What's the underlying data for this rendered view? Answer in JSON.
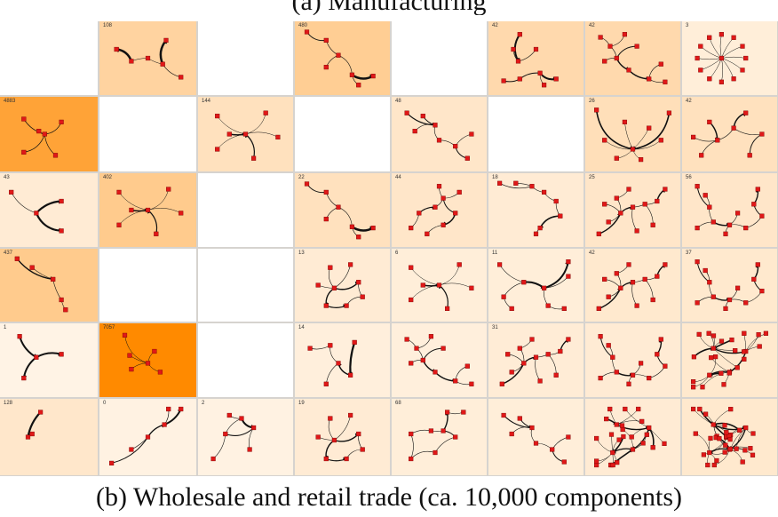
{
  "figure": {
    "top_caption": "(a) Manufacturing",
    "caption": "(b)  Wholesale and retail trade (ca. 10,000 components)",
    "colors": {
      "grid_line": "#d6d3cf",
      "node": "#e01818",
      "edge": "#111111",
      "empty": "#ffffff"
    },
    "rows": 6,
    "cols": 8,
    "cells": [
      [
        {
          "count": "",
          "shade": 0,
          "motif": "empty"
        },
        {
          "count": "108",
          "shade": 0.3,
          "motif": "pair"
        },
        {
          "count": "",
          "shade": 0,
          "motif": "empty"
        },
        {
          "count": "480",
          "shade": 0.35,
          "motif": "chain"
        },
        {
          "count": "",
          "shade": 0,
          "motif": "empty"
        },
        {
          "count": "42",
          "shade": 0.25,
          "motif": "bracket"
        },
        {
          "count": "42",
          "shade": 0.25,
          "motif": "tree"
        },
        {
          "count": "3",
          "shade": 0.08,
          "motif": "star"
        }
      ],
      [
        {
          "count": "4883",
          "shade": 0.75,
          "motif": "cross"
        },
        {
          "count": "",
          "shade": 0,
          "motif": "empty"
        },
        {
          "count": "144",
          "shade": 0.18,
          "motif": "star5"
        },
        {
          "count": "",
          "shade": 0,
          "motif": "empty"
        },
        {
          "count": "48",
          "shade": 0.14,
          "motif": "sbend"
        },
        {
          "count": "",
          "shade": 0,
          "motif": "empty"
        },
        {
          "count": "26",
          "shade": 0.2,
          "motif": "fan"
        },
        {
          "count": "42",
          "shade": 0.18,
          "motif": "pair2"
        }
      ],
      [
        {
          "count": "43",
          "shade": 0.1,
          "motif": "tripod"
        },
        {
          "count": "402",
          "shade": 0.38,
          "motif": "star5"
        },
        {
          "count": "",
          "shade": 0,
          "motif": "empty"
        },
        {
          "count": "22",
          "shade": 0.18,
          "motif": "chain"
        },
        {
          "count": "44",
          "shade": 0.14,
          "motif": "zigzag"
        },
        {
          "count": "18",
          "shade": 0.1,
          "motif": "bigarc"
        },
        {
          "count": "25",
          "shade": 0.14,
          "motif": "net"
        },
        {
          "count": "56",
          "shade": 0.14,
          "motif": "net2"
        }
      ],
      [
        {
          "count": "437",
          "shade": 0.38,
          "motif": "line"
        },
        {
          "count": "",
          "shade": 0,
          "motif": "empty"
        },
        {
          "count": "",
          "shade": 0,
          "motif": "empty"
        },
        {
          "count": "13",
          "shade": 0.1,
          "motif": "loop"
        },
        {
          "count": "6",
          "shade": 0.08,
          "motif": "star5"
        },
        {
          "count": "11",
          "shade": 0.08,
          "motif": "xcross"
        },
        {
          "count": "42",
          "shade": 0.12,
          "motif": "net"
        },
        {
          "count": "37",
          "shade": 0.12,
          "motif": "net2"
        }
      ],
      [
        {
          "count": "1",
          "shade": 0.04,
          "motif": "tripod2"
        },
        {
          "count": "7057",
          "shade": 1.0,
          "motif": "fork"
        },
        {
          "count": "",
          "shade": 0,
          "motif": "empty"
        },
        {
          "count": "14",
          "shade": 0.07,
          "motif": "hook"
        },
        {
          "count": "",
          "shade": 0.07,
          "motif": "tree"
        },
        {
          "count": "31",
          "shade": 0.09,
          "motif": "net"
        },
        {
          "count": "",
          "shade": 0.1,
          "motif": "net2"
        },
        {
          "count": "",
          "shade": 0.12,
          "motif": "dense"
        }
      ],
      [
        {
          "count": "128",
          "shade": 0.13,
          "motif": "arrow"
        },
        {
          "count": "0",
          "shade": 0.05,
          "motif": "diag"
        },
        {
          "count": "2",
          "shade": 0.05,
          "motif": "tri"
        },
        {
          "count": "19",
          "shade": 0.1,
          "motif": "loop"
        },
        {
          "count": "68",
          "shade": 0.08,
          "motif": "box"
        },
        {
          "count": "",
          "shade": 0.08,
          "motif": "sbend"
        },
        {
          "count": "",
          "shade": 0.1,
          "motif": "dense"
        },
        {
          "count": "",
          "shade": 0.12,
          "motif": "dense2"
        }
      ]
    ]
  }
}
